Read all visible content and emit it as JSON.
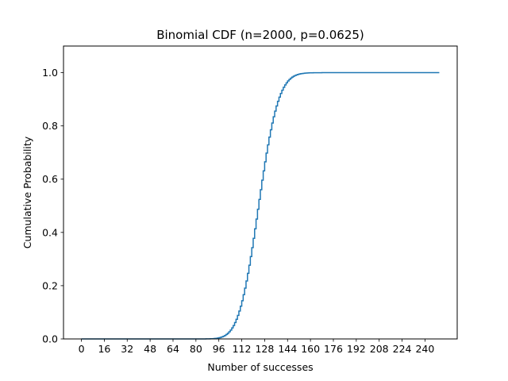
{
  "chart_data": {
    "type": "line",
    "title": "Binomial CDF (n=2000, p=0.0625)",
    "xlabel": "Number of successes",
    "ylabel": "Cumulative Probability",
    "series": [
      {
        "n": 2000,
        "p": 0.0625,
        "x_range": [
          0,
          250
        ],
        "color": "#1f77b4",
        "drawstyle": "steps"
      }
    ],
    "xlim": [
      -12.5,
      262.5
    ],
    "ylim": [
      0.0,
      1.1
    ],
    "xticks": [
      0,
      16,
      32,
      48,
      64,
      80,
      96,
      112,
      128,
      144,
      160,
      176,
      192,
      208,
      224,
      240
    ],
    "yticks": [
      0.0,
      0.2,
      0.4,
      0.6,
      0.8,
      1.0
    ],
    "xtick_labels": [
      "0",
      "16",
      "32",
      "48",
      "64",
      "80",
      "96",
      "112",
      "128",
      "144",
      "160",
      "176",
      "192",
      "208",
      "224",
      "240"
    ],
    "ytick_labels": [
      "0.0",
      "0.2",
      "0.4",
      "0.6",
      "0.8",
      "1.0"
    ],
    "grid": false,
    "legend": "none"
  }
}
